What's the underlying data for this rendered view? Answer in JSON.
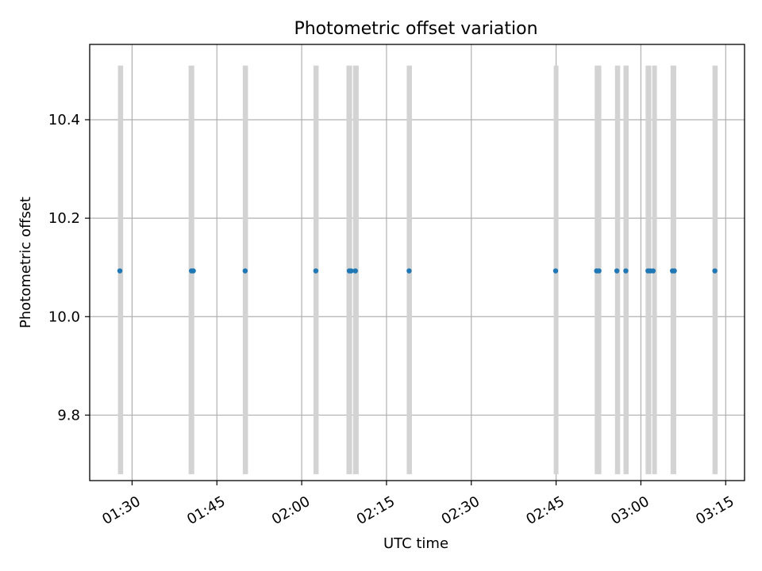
{
  "chart_data": {
    "type": "scatter",
    "title": "Photometric offset variation",
    "xlabel": "UTC time",
    "ylabel": "Photometric offset",
    "x_unit": "time (HH:MM UTC)",
    "xlim": [
      "01:22:30",
      "03:18:20"
    ],
    "ylim": [
      9.667,
      10.553
    ],
    "xticks": [
      "01:30",
      "01:45",
      "02:00",
      "02:15",
      "02:30",
      "02:45",
      "03:00",
      "03:15"
    ],
    "yticks": [
      9.8,
      10.0,
      10.2,
      10.4
    ],
    "ytick_labels": [
      "9.8",
      "10.0",
      "10.2",
      "10.4"
    ],
    "grid": true,
    "points": [
      {
        "time": "01:27:50",
        "offset": 10.093
      },
      {
        "time": "01:40:30",
        "offset": 10.093
      },
      {
        "time": "01:40:50",
        "offset": 10.093
      },
      {
        "time": "01:50:00",
        "offset": 10.093
      },
      {
        "time": "02:02:30",
        "offset": 10.093
      },
      {
        "time": "02:08:25",
        "offset": 10.093
      },
      {
        "time": "02:08:45",
        "offset": 10.093
      },
      {
        "time": "02:09:30",
        "offset": 10.093
      },
      {
        "time": "02:19:00",
        "offset": 10.093
      },
      {
        "time": "02:44:55",
        "offset": 10.093
      },
      {
        "time": "02:52:10",
        "offset": 10.093
      },
      {
        "time": "02:52:35",
        "offset": 10.093
      },
      {
        "time": "02:55:45",
        "offset": 10.093
      },
      {
        "time": "02:57:20",
        "offset": 10.093
      },
      {
        "time": "03:01:15",
        "offset": 10.093
      },
      {
        "time": "03:01:40",
        "offset": 10.093
      },
      {
        "time": "03:02:10",
        "offset": 10.093
      },
      {
        "time": "03:05:35",
        "offset": 10.093
      },
      {
        "time": "03:05:55",
        "offset": 10.093
      },
      {
        "time": "03:13:05",
        "offset": 10.093
      }
    ],
    "bands": [
      {
        "start": "01:27:30",
        "end": "01:28:25",
        "y_range": [
          9.68,
          10.51
        ]
      },
      {
        "start": "01:40:00",
        "end": "01:41:00",
        "y_range": [
          9.68,
          10.51
        ]
      },
      {
        "start": "01:49:35",
        "end": "01:50:30",
        "y_range": [
          9.68,
          10.51
        ]
      },
      {
        "start": "02:02:05",
        "end": "02:03:00",
        "y_range": [
          9.68,
          10.51
        ]
      },
      {
        "start": "02:07:55",
        "end": "02:08:55",
        "y_range": [
          9.68,
          10.51
        ]
      },
      {
        "start": "02:09:05",
        "end": "02:10:05",
        "y_range": [
          9.68,
          10.51
        ]
      },
      {
        "start": "02:18:35",
        "end": "02:19:30",
        "y_range": [
          9.68,
          10.51
        ]
      },
      {
        "start": "02:44:35",
        "end": "02:45:25",
        "y_range": [
          9.68,
          10.51
        ]
      },
      {
        "start": "02:51:50",
        "end": "02:53:00",
        "y_range": [
          9.68,
          10.51
        ]
      },
      {
        "start": "02:55:25",
        "end": "02:56:20",
        "y_range": [
          9.68,
          10.51
        ]
      },
      {
        "start": "02:56:55",
        "end": "02:57:50",
        "y_range": [
          9.68,
          10.51
        ]
      },
      {
        "start": "03:00:50",
        "end": "03:01:50",
        "y_range": [
          9.68,
          10.51
        ]
      },
      {
        "start": "03:02:00",
        "end": "03:02:50",
        "y_range": [
          9.68,
          10.51
        ]
      },
      {
        "start": "03:05:15",
        "end": "03:06:15",
        "y_range": [
          9.68,
          10.51
        ]
      },
      {
        "start": "03:12:40",
        "end": "03:13:35",
        "y_range": [
          9.68,
          10.51
        ]
      }
    ],
    "colors": {
      "points": "#1f77b4",
      "bands": "#d3d3d3",
      "grid": "#b0b0b0",
      "axes": "#000000"
    }
  }
}
